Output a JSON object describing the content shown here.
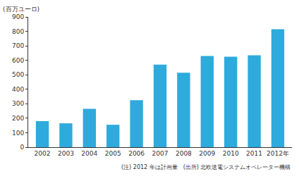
{
  "chart_data": {
    "type": "bar",
    "ylabel": "(百万ユーロ)",
    "categories": [
      "2002",
      "2003",
      "2004",
      "2005",
      "2006",
      "2007",
      "2008",
      "2009",
      "2010",
      "2011",
      "2012年"
    ],
    "values": [
      180,
      165,
      265,
      155,
      325,
      570,
      515,
      630,
      625,
      635,
      815
    ],
    "color": "#2eaadc",
    "ylim": [
      0,
      900
    ],
    "yticks": [
      0,
      100,
      200,
      300,
      400,
      500,
      600,
      700,
      800,
      900
    ],
    "grid": false,
    "annotations": [
      "(注) 2012 年は計画量",
      "(出所) 北欧送電システムオペレーター機構"
    ]
  }
}
